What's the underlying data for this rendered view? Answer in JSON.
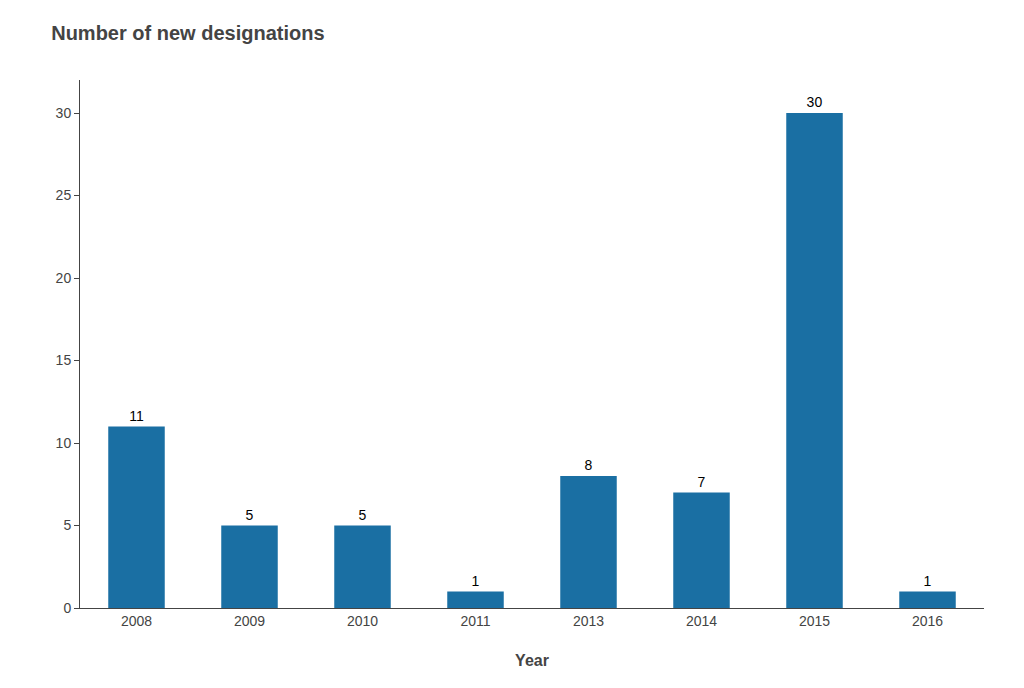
{
  "chart_data": {
    "type": "bar",
    "title": "Number of new designations",
    "xlabel": "Year",
    "categories": [
      "2008",
      "2009",
      "2010",
      "2011",
      "2013",
      "2014",
      "2015",
      "2016"
    ],
    "values": [
      11,
      5,
      5,
      1,
      8,
      7,
      30,
      1
    ],
    "color": "#1a6fa3",
    "ylim": [
      0,
      32
    ],
    "yticks": [
      0,
      5,
      10,
      15,
      20,
      25,
      30
    ],
    "grid": false,
    "data_labels": true
  }
}
